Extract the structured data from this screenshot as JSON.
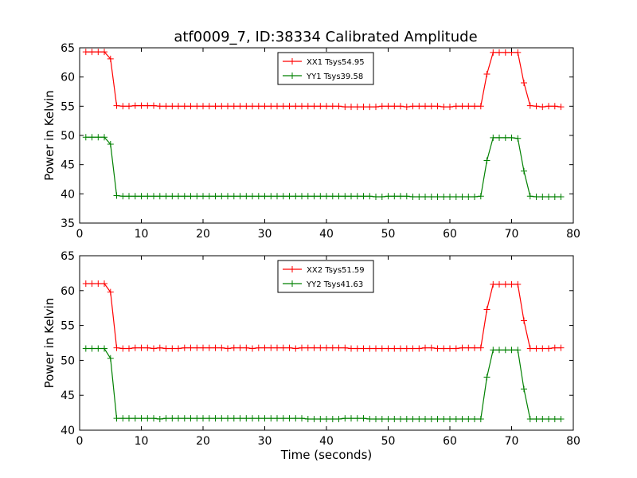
{
  "figure": {
    "title": "atf0009_7, ID:38334 Calibrated Amplitude"
  },
  "chart_data": [
    {
      "type": "line",
      "title": "atf0009_7, ID:38334 Calibrated Amplitude",
      "xlabel": "",
      "ylabel": "Power in Kelvin",
      "xlim": [
        0,
        80
      ],
      "ylim": [
        35,
        65
      ],
      "xticks": [
        "0",
        "10",
        "20",
        "30",
        "40",
        "50",
        "60",
        "70",
        "80"
      ],
      "yticks": [
        "35",
        "40",
        "45",
        "50",
        "55",
        "60",
        "65"
      ],
      "grid": false,
      "legend_position": "top-center",
      "x": [
        1,
        2,
        3,
        4,
        5,
        6,
        7,
        8,
        9,
        10,
        11,
        12,
        13,
        14,
        15,
        16,
        17,
        18,
        19,
        20,
        21,
        22,
        23,
        24,
        25,
        26,
        27,
        28,
        29,
        30,
        31,
        32,
        33,
        34,
        35,
        36,
        37,
        38,
        39,
        40,
        41,
        42,
        43,
        44,
        45,
        46,
        47,
        48,
        49,
        50,
        51,
        52,
        53,
        54,
        55,
        56,
        57,
        58,
        59,
        60,
        61,
        62,
        63,
        64,
        65,
        66,
        67,
        68,
        69,
        70,
        71,
        72,
        73,
        74,
        75,
        76,
        77,
        78
      ],
      "series": [
        {
          "name": "XX1 Tsys54.95",
          "color": "#ff0000",
          "values": [
            64.3,
            64.3,
            64.3,
            64.3,
            63.1,
            55.1,
            55.0,
            55.0,
            55.1,
            55.1,
            55.1,
            55.1,
            55.0,
            55.0,
            55.0,
            55.0,
            55.0,
            55.0,
            55.0,
            55.0,
            55.0,
            55.0,
            55.0,
            55.0,
            55.0,
            55.0,
            55.0,
            55.0,
            55.0,
            55.0,
            55.0,
            55.0,
            55.0,
            55.0,
            55.0,
            55.0,
            55.0,
            55.0,
            55.0,
            55.0,
            55.0,
            55.0,
            54.9,
            54.9,
            54.9,
            54.9,
            54.9,
            54.9,
            55.0,
            55.0,
            55.0,
            55.0,
            54.9,
            55.0,
            55.0,
            55.0,
            55.0,
            55.0,
            54.9,
            54.9,
            55.0,
            55.0,
            55.0,
            55.0,
            55.0,
            60.5,
            64.2,
            64.2,
            64.2,
            64.2,
            64.2,
            59.0,
            55.1,
            55.0,
            54.9,
            55.0,
            55.0,
            54.9
          ]
        },
        {
          "name": "YY1 Tsys39.58",
          "color": "#008000",
          "values": [
            49.7,
            49.7,
            49.7,
            49.7,
            48.5,
            39.7,
            39.6,
            39.6,
            39.6,
            39.6,
            39.6,
            39.6,
            39.6,
            39.6,
            39.6,
            39.6,
            39.6,
            39.6,
            39.6,
            39.6,
            39.6,
            39.6,
            39.6,
            39.6,
            39.6,
            39.6,
            39.6,
            39.6,
            39.6,
            39.6,
            39.6,
            39.6,
            39.6,
            39.6,
            39.6,
            39.6,
            39.6,
            39.6,
            39.6,
            39.6,
            39.6,
            39.6,
            39.6,
            39.6,
            39.6,
            39.6,
            39.6,
            39.5,
            39.5,
            39.6,
            39.6,
            39.6,
            39.6,
            39.5,
            39.5,
            39.5,
            39.5,
            39.5,
            39.5,
            39.5,
            39.5,
            39.5,
            39.5,
            39.5,
            39.6,
            45.7,
            49.6,
            49.6,
            49.6,
            49.6,
            49.5,
            43.9,
            39.6,
            39.5,
            39.5,
            39.5,
            39.5,
            39.5
          ]
        }
      ]
    },
    {
      "type": "line",
      "title": "",
      "xlabel": "Time (seconds)",
      "ylabel": "Power in Kelvin",
      "xlim": [
        0,
        80
      ],
      "ylim": [
        40,
        65
      ],
      "xticks": [
        "0",
        "10",
        "20",
        "30",
        "40",
        "50",
        "60",
        "70",
        "80"
      ],
      "yticks": [
        "40",
        "45",
        "50",
        "55",
        "60",
        "65"
      ],
      "grid": false,
      "legend_position": "top-center",
      "x": [
        1,
        2,
        3,
        4,
        5,
        6,
        7,
        8,
        9,
        10,
        11,
        12,
        13,
        14,
        15,
        16,
        17,
        18,
        19,
        20,
        21,
        22,
        23,
        24,
        25,
        26,
        27,
        28,
        29,
        30,
        31,
        32,
        33,
        34,
        35,
        36,
        37,
        38,
        39,
        40,
        41,
        42,
        43,
        44,
        45,
        46,
        47,
        48,
        49,
        50,
        51,
        52,
        53,
        54,
        55,
        56,
        57,
        58,
        59,
        60,
        61,
        62,
        63,
        64,
        65,
        66,
        67,
        68,
        69,
        70,
        71,
        72,
        73,
        74,
        75,
        76,
        77,
        78
      ],
      "series": [
        {
          "name": "XX2 Tsys51.59",
          "color": "#ff0000",
          "values": [
            61.0,
            61.0,
            61.0,
            61.0,
            59.8,
            51.8,
            51.7,
            51.7,
            51.8,
            51.8,
            51.8,
            51.7,
            51.8,
            51.7,
            51.7,
            51.7,
            51.8,
            51.8,
            51.8,
            51.8,
            51.8,
            51.8,
            51.8,
            51.7,
            51.8,
            51.8,
            51.8,
            51.7,
            51.8,
            51.8,
            51.8,
            51.8,
            51.8,
            51.8,
            51.7,
            51.8,
            51.8,
            51.8,
            51.8,
            51.8,
            51.8,
            51.8,
            51.8,
            51.7,
            51.7,
            51.7,
            51.7,
            51.7,
            51.7,
            51.7,
            51.7,
            51.7,
            51.7,
            51.7,
            51.7,
            51.8,
            51.8,
            51.7,
            51.7,
            51.7,
            51.7,
            51.8,
            51.8,
            51.8,
            51.8,
            57.3,
            60.9,
            60.9,
            60.9,
            60.9,
            60.9,
            55.7,
            51.7,
            51.7,
            51.7,
            51.7,
            51.8,
            51.8
          ]
        },
        {
          "name": "YY2 Tsys41.63",
          "color": "#008000",
          "values": [
            51.7,
            51.7,
            51.7,
            51.7,
            50.3,
            41.7,
            41.7,
            41.7,
            41.7,
            41.7,
            41.7,
            41.7,
            41.6,
            41.7,
            41.7,
            41.7,
            41.7,
            41.7,
            41.7,
            41.7,
            41.7,
            41.7,
            41.7,
            41.7,
            41.7,
            41.7,
            41.7,
            41.7,
            41.7,
            41.7,
            41.7,
            41.7,
            41.7,
            41.7,
            41.7,
            41.7,
            41.6,
            41.6,
            41.6,
            41.6,
            41.6,
            41.6,
            41.7,
            41.7,
            41.7,
            41.7,
            41.6,
            41.6,
            41.6,
            41.6,
            41.6,
            41.6,
            41.6,
            41.6,
            41.6,
            41.6,
            41.6,
            41.6,
            41.6,
            41.6,
            41.6,
            41.6,
            41.6,
            41.6,
            41.6,
            47.6,
            51.5,
            51.5,
            51.5,
            51.5,
            51.5,
            45.9,
            41.6,
            41.6,
            41.6,
            41.6,
            41.6,
            41.6
          ]
        }
      ]
    }
  ]
}
